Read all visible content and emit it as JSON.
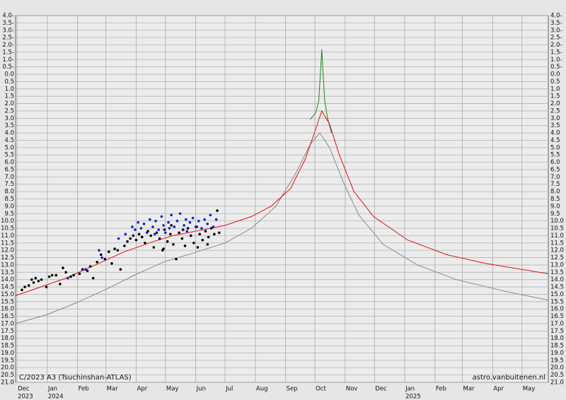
{
  "chart_data": {
    "type": "scatter",
    "annotations": [
      "C/2023 A3 (Tsuchinshan-ATLAS)",
      "astro.vanbuitenen.nl"
    ],
    "xlim": [
      -1.5,
      544
    ],
    "ylim": [
      21,
      -4
    ],
    "grid": true,
    "xticks": [
      {
        "value": 0,
        "label": "Dec"
      },
      {
        "value": 31,
        "label": "Jan"
      },
      {
        "value": 62,
        "label": "Feb"
      },
      {
        "value": 91,
        "label": "Mar"
      },
      {
        "value": 122,
        "label": "Apr"
      },
      {
        "value": 152,
        "label": "May"
      },
      {
        "value": 183,
        "label": "Jun"
      },
      {
        "value": 213,
        "label": "Jul"
      },
      {
        "value": 244,
        "label": "Aug"
      },
      {
        "value": 275,
        "label": "Sep"
      },
      {
        "value": 305,
        "label": "Oct"
      },
      {
        "value": 336,
        "label": "Nov"
      },
      {
        "value": 366,
        "label": "Dec"
      },
      {
        "value": 397,
        "label": "Jan"
      },
      {
        "value": 428,
        "label": "Feb"
      },
      {
        "value": 456,
        "label": "Mar"
      },
      {
        "value": 487,
        "label": "Apr"
      },
      {
        "value": 517,
        "label": "May"
      }
    ],
    "year_labels": [
      {
        "value": 0,
        "label": "2023"
      },
      {
        "value": 31,
        "label": "2024"
      },
      {
        "value": 397,
        "label": "2025"
      }
    ],
    "yticks": [
      {
        "value": -4,
        "label": "4.0-"
      },
      {
        "value": -3.5,
        "label": "3.5-"
      },
      {
        "value": -3,
        "label": "3.0-"
      },
      {
        "value": -2.5,
        "label": "2.5-"
      },
      {
        "value": -2,
        "label": "2.0-"
      },
      {
        "value": -1.5,
        "label": "1.5-"
      },
      {
        "value": -1,
        "label": "1.0-"
      },
      {
        "value": -0.5,
        "label": "0.5-"
      },
      {
        "value": 0,
        "label": "0.0"
      },
      0.5,
      {
        "value": 1,
        "label": "1.0"
      },
      1.5,
      {
        "value": 2,
        "label": "2.0"
      },
      2.5,
      {
        "value": 3,
        "label": "3.0"
      },
      3.5,
      {
        "value": 4,
        "label": "4.0"
      },
      4.5,
      {
        "value": 5,
        "label": "5.0"
      },
      5.5,
      {
        "value": 6,
        "label": "6.0"
      },
      6.5,
      {
        "value": 7,
        "label": "7.0"
      },
      7.5,
      {
        "value": 8,
        "label": "8.0"
      },
      8.5,
      {
        "value": 9,
        "label": "9.0"
      },
      9.5,
      {
        "value": 10,
        "label": "10.0"
      },
      10.5,
      {
        "value": 11,
        "label": "11.0"
      },
      11.5,
      {
        "value": 12,
        "label": "12.0"
      },
      12.5,
      {
        "value": 13,
        "label": "13.0"
      },
      13.5,
      {
        "value": 14,
        "label": "14.0"
      },
      14.5,
      {
        "value": 15,
        "label": "15.0"
      },
      15.5,
      {
        "value": 16,
        "label": "16.0"
      },
      16.5,
      {
        "value": 17,
        "label": "17.0"
      },
      17.5,
      {
        "value": 18,
        "label": "18.0"
      },
      18.5,
      {
        "value": 19,
        "label": "19.0"
      },
      19.5,
      {
        "value": 20,
        "label": "20.0"
      },
      20.5,
      {
        "value": 21,
        "label": "21.0"
      }
    ],
    "series": [
      {
        "type": "line",
        "color": "#888888",
        "x": [
          -2,
          30,
          60,
          90,
          120,
          150,
          180,
          213,
          240,
          265,
          285,
          300,
          310,
          320,
          335,
          350,
          375,
          410,
          450,
          500,
          544
        ],
        "values": [
          17.0,
          16.4,
          15.6,
          14.7,
          13.7,
          12.8,
          12.2,
          11.5,
          10.5,
          9.0,
          6.8,
          4.8,
          4.0,
          5.0,
          7.5,
          9.6,
          11.6,
          13.0,
          14.0,
          14.8,
          15.4
        ]
      },
      {
        "type": "line",
        "color": "#1a8a1a",
        "x": [
          300,
          306,
          309,
          311,
          312,
          313,
          315,
          318,
          322
        ],
        "values": [
          3.1,
          2.6,
          1.8,
          -0.5,
          -1.7,
          -0.5,
          1.8,
          3.0,
          4.0
        ]
      },
      {
        "type": "line",
        "color": "#e01010",
        "x": [
          -2,
          20,
          50,
          80,
          110,
          140,
          160,
          190,
          213,
          240,
          260,
          280,
          295,
          305,
          312,
          320,
          330,
          345,
          365,
          400,
          440,
          480,
          544
        ],
        "values": [
          15.1,
          14.6,
          13.9,
          13.0,
          12.1,
          11.4,
          11.0,
          10.6,
          10.3,
          9.7,
          9.0,
          7.8,
          5.8,
          3.9,
          2.5,
          3.4,
          5.5,
          8.0,
          9.7,
          11.3,
          12.3,
          12.9,
          13.6
        ]
      },
      {
        "type": "scatter",
        "color": "#000000",
        "x": [
          5,
          8,
          12,
          15,
          17,
          19,
          22,
          25,
          30,
          33,
          36,
          40,
          44,
          47,
          50,
          55,
          58,
          64,
          67,
          72,
          75,
          78,
          82,
          86,
          90,
          94,
          97,
          100,
          103,
          106,
          110,
          113,
          116,
          119,
          122,
          125,
          128,
          131,
          134,
          137,
          140,
          143,
          146,
          149,
          151,
          154,
          157,
          160,
          163,
          166,
          169,
          172,
          175,
          178,
          181,
          184,
          187,
          190,
          193,
          196,
          199,
          202,
          205,
          207,
          150,
          158,
          170,
          185,
          195
        ],
        "values": [
          14.7,
          14.5,
          14.4,
          14.0,
          14.2,
          13.9,
          14.1,
          14.0,
          14.5,
          13.8,
          13.7,
          13.7,
          14.3,
          13.2,
          13.5,
          13.8,
          13.7,
          13.6,
          13.3,
          13.4,
          13.1,
          13.9,
          12.8,
          12.3,
          12.6,
          12.1,
          12.9,
          11.9,
          12.0,
          13.3,
          11.7,
          11.4,
          11.2,
          11.0,
          11.3,
          10.9,
          11.1,
          11.5,
          10.7,
          11.0,
          11.8,
          10.8,
          11.2,
          12.0,
          10.6,
          11.4,
          10.9,
          11.6,
          12.6,
          10.8,
          11.2,
          11.7,
          10.5,
          11.0,
          11.5,
          10.4,
          10.9,
          11.3,
          10.7,
          11.1,
          10.5,
          10.9,
          9.3,
          10.8,
          11.9,
          10.3,
          10.6,
          11.8,
          11.6
        ]
      },
      {
        "type": "scatter",
        "color": "#1020e0",
        "x": [
          52,
          70,
          84,
          87,
          104,
          111,
          118,
          121,
          124,
          127,
          130,
          133,
          136,
          139,
          142,
          145,
          148,
          150,
          152,
          155,
          158,
          161,
          164,
          167,
          171,
          174,
          177,
          180,
          183,
          186,
          189,
          192,
          195,
          198,
          201,
          204,
          141,
          156,
          173
        ],
        "values": [
          13.9,
          13.3,
          12.0,
          12.5,
          11.2,
          10.9,
          10.4,
          10.6,
          10.1,
          10.5,
          10.2,
          10.8,
          9.9,
          10.4,
          10.0,
          10.6,
          9.7,
          10.3,
          10.8,
          10.1,
          9.6,
          10.4,
          10.0,
          9.5,
          10.3,
          10.7,
          10.1,
          9.8,
          10.4,
          10.0,
          10.5,
          9.9,
          10.2,
          9.6,
          10.4,
          9.9,
          10.9,
          10.5,
          9.9
        ]
      }
    ]
  }
}
